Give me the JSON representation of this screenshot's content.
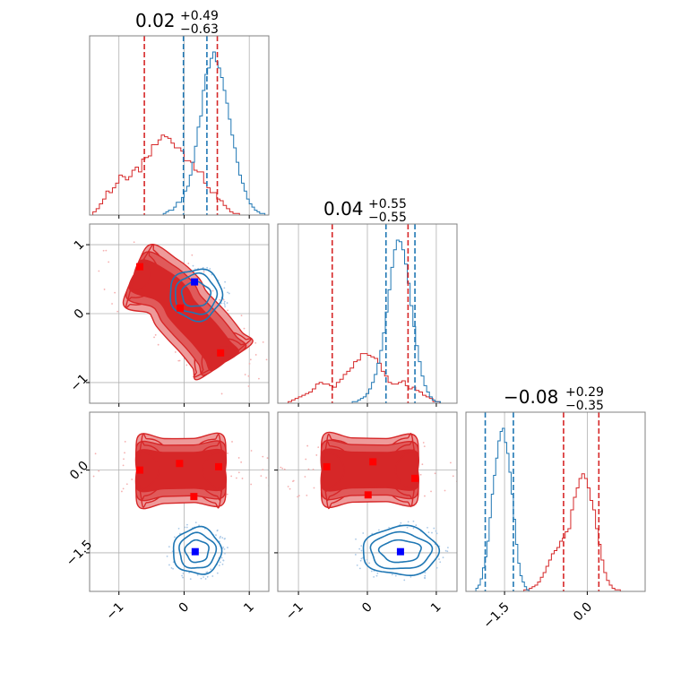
{
  "colors": {
    "red": "#d62728",
    "red_light": "#ee9a9a",
    "red_mid": "#e05a5a",
    "blue": "#1f77b4",
    "marker_red": "#ff0000",
    "marker_blue": "#0000ff",
    "grid": "#b0b0b0",
    "frame": "#808080"
  },
  "chart_data": {
    "type": "corner",
    "grid": true,
    "titles": [
      {
        "value": "0.02",
        "plus": "+0.49",
        "minus": "−0.63"
      },
      {
        "value": "0.04",
        "plus": "+0.55",
        "minus": "−0.55"
      },
      {
        "value": "−0.08",
        "plus": "+0.29",
        "minus": "−0.35"
      }
    ],
    "params": [
      {
        "range": [
          -1.45,
          1.3
        ],
        "ticks": [
          -1,
          0,
          1
        ],
        "tick_labels": [
          "−1",
          "0",
          "1"
        ]
      },
      {
        "range": [
          -1.3,
          1.3
        ],
        "ticks": [
          -1,
          0,
          1
        ],
        "tick_labels": [
          "−1",
          "0",
          "1"
        ]
      },
      {
        "range": [
          -2.2,
          1.05
        ],
        "ticks": [
          -1.5,
          0.0
        ],
        "tick_labels": [
          "−1.5",
          "0.0"
        ]
      }
    ],
    "quantiles": {
      "red": [
        [
          -0.61,
          0.51
        ],
        [
          -0.51,
          0.59
        ],
        [
          -0.43,
          0.21
        ]
      ],
      "blue": [
        [
          -0.01,
          0.35
        ],
        [
          0.27,
          0.69
        ],
        [
          -1.85,
          -1.34
        ]
      ]
    },
    "hist": [
      {
        "blue": {
          "start": -1.0,
          "step": 0.04,
          "counts": [
            0,
            0,
            0,
            0,
            0,
            0,
            0,
            0,
            0,
            0,
            0,
            0,
            0,
            0,
            0,
            0,
            0,
            1,
            2,
            3,
            3,
            5,
            8,
            8,
            11,
            15,
            18,
            25,
            33,
            43,
            55,
            62,
            78,
            88,
            92,
            98,
            102,
            96,
            92,
            86,
            78,
            70,
            60,
            50,
            42,
            33,
            25,
            20,
            15,
            10,
            7,
            5,
            3,
            2,
            1,
            1,
            0,
            0
          ]
        },
        "red": {
          "start": -1.45,
          "step": 0.05,
          "counts": [
            0,
            2,
            4,
            7,
            10,
            15,
            14,
            17,
            20,
            25,
            24,
            22,
            24,
            28,
            30,
            27,
            35,
            36,
            37,
            44,
            44,
            47,
            50,
            49,
            48,
            45,
            42,
            42,
            40,
            34,
            34,
            33,
            28,
            27,
            27,
            20,
            17,
            14,
            14,
            10,
            9,
            6,
            4,
            2,
            1,
            1,
            0,
            0,
            0,
            0,
            0,
            0,
            0,
            0,
            0
          ]
        }
      },
      {
        "blue": {
          "start": -1.3,
          "step": 0.04,
          "counts": [
            0,
            0,
            0,
            0,
            0,
            0,
            0,
            0,
            0,
            0,
            0,
            0,
            0,
            0,
            0,
            0,
            0,
            0,
            0,
            0,
            0,
            0,
            0,
            0,
            0,
            0,
            0,
            1,
            1,
            2,
            3,
            4,
            6,
            9,
            13,
            18,
            25,
            33,
            44,
            57,
            71,
            85,
            96,
            102,
            101,
            96,
            87,
            75,
            61,
            48,
            36,
            26,
            17,
            11,
            7,
            4,
            2,
            1,
            1,
            0,
            0,
            0,
            0,
            0
          ]
        },
        "red": {
          "start": -1.3,
          "step": 0.05,
          "counts": [
            0,
            0,
            0,
            1,
            2,
            3,
            4,
            5,
            6,
            7,
            9,
            12,
            13,
            12,
            12,
            11,
            10,
            13,
            15,
            18,
            20,
            22,
            26,
            27,
            31,
            31,
            30,
            29,
            28,
            25,
            20,
            17,
            13,
            12,
            12,
            13,
            14,
            11,
            9,
            10,
            8,
            7,
            5,
            4,
            3,
            1,
            1,
            0,
            0,
            0,
            0,
            0
          ]
        }
      },
      {
        "blue": {
          "start": -2.1,
          "step": 0.04,
          "counts": [
            0,
            0,
            2,
            4,
            8,
            15,
            22,
            32,
            47,
            62,
            74,
            85,
            96,
            102,
            104,
            95,
            88,
            76,
            62,
            46,
            30,
            18,
            10,
            6,
            3,
            1,
            0,
            0,
            0
          ]
        },
        "red": {
          "start": -1.3,
          "step": 0.05,
          "counts": [
            0,
            0,
            0,
            1,
            1,
            2,
            3,
            4,
            6,
            9,
            12,
            16,
            20,
            24,
            26,
            28,
            32,
            34,
            38,
            40,
            52,
            60,
            66,
            72,
            75,
            72,
            66,
            58,
            52,
            40,
            30,
            20,
            12,
            7,
            4,
            2,
            1,
            1,
            0,
            0,
            0
          ]
        }
      }
    ],
    "panels_2d": [
      {
        "row": 1,
        "col": 0,
        "red_markers": [
          [
            -0.68,
            0.68
          ],
          [
            -0.06,
            0.08
          ],
          [
            0.56,
            -0.57
          ]
        ],
        "blue_markers": [
          [
            0.16,
            0.46
          ]
        ],
        "red_path": [
          [
            -0.75,
            0.57
          ],
          [
            -0.33,
            0.4
          ],
          [
            -0.14,
            0.24
          ],
          [
            -0.05,
            0.08
          ],
          [
            0.1,
            -0.08
          ],
          [
            0.31,
            -0.29
          ],
          [
            0.51,
            -0.53
          ],
          [
            0.63,
            -0.7
          ]
        ],
        "blue_center": [
          0.18,
          0.28
        ],
        "blue_radii": [
          [
            0.4,
            0.37
          ],
          [
            0.32,
            0.29
          ],
          [
            0.22,
            0.18
          ]
        ]
      },
      {
        "row": 2,
        "col": 0,
        "red_markers": [
          [
            -0.68,
            0.0
          ],
          [
            -0.07,
            0.12
          ],
          [
            0.53,
            0.06
          ],
          [
            0.15,
            -0.48
          ]
        ],
        "blue_markers": [
          [
            0.17,
            -1.48
          ]
        ],
        "red_path": [
          [
            -0.72,
            0.0
          ],
          [
            -0.3,
            0.0
          ],
          [
            0.15,
            0.0
          ],
          [
            0.62,
            0.0
          ]
        ],
        "blue_center": [
          0.2,
          -1.47
        ],
        "blue_radii": [
          [
            0.37,
            0.42
          ],
          [
            0.28,
            0.32
          ],
          [
            0.18,
            0.2
          ]
        ]
      },
      {
        "row": 2,
        "col": 1,
        "red_markers": [
          [
            -0.59,
            0.06
          ],
          [
            0.08,
            0.15
          ],
          [
            0.69,
            -0.15
          ],
          [
            0.01,
            -0.45
          ]
        ],
        "blue_markers": [
          [
            0.48,
            -1.48
          ]
        ],
        "red_path": [
          [
            -0.65,
            0.0
          ],
          [
            -0.22,
            0.0
          ],
          [
            0.27,
            0.0
          ],
          [
            0.72,
            0.0
          ]
        ],
        "blue_center": [
          0.48,
          -1.47
        ],
        "blue_radii": [
          [
            0.55,
            0.44
          ],
          [
            0.44,
            0.33
          ],
          [
            0.3,
            0.2
          ]
        ]
      }
    ]
  }
}
